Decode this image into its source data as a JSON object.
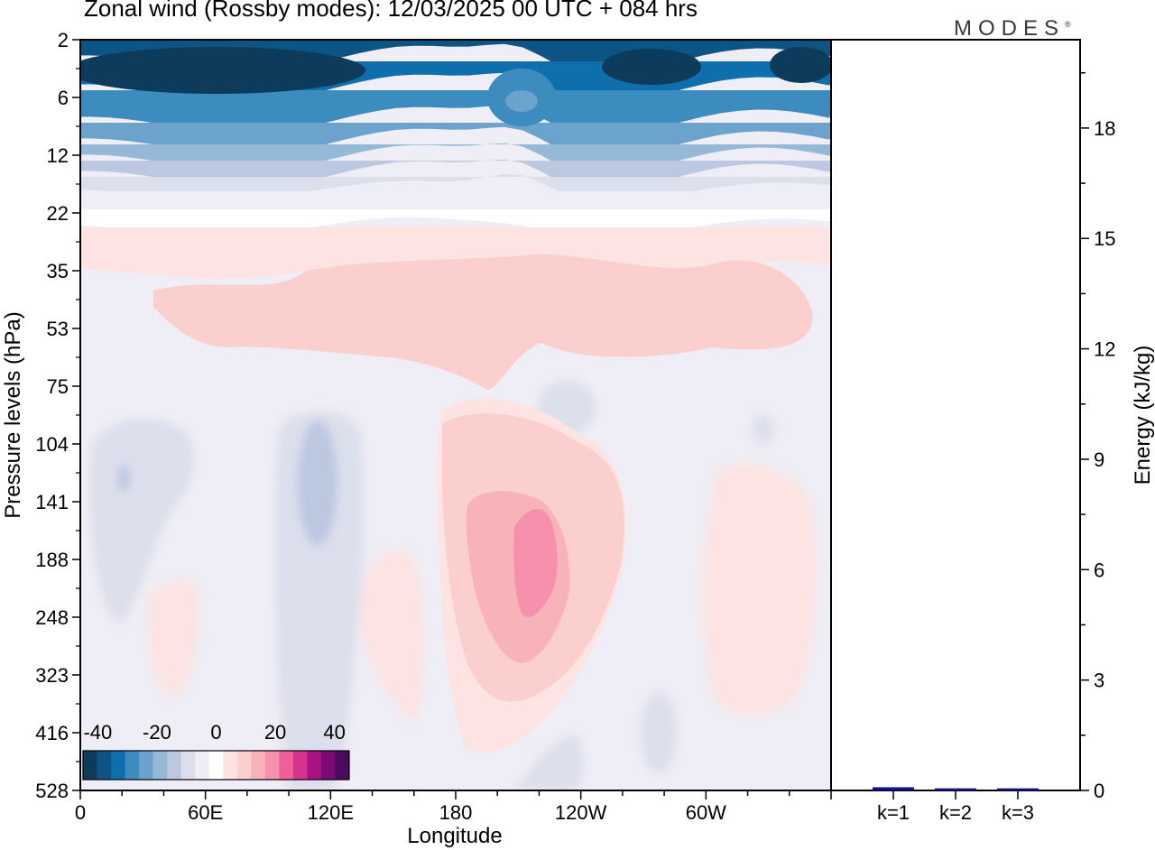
{
  "title": "Zonal wind (Rossby modes):  12/03/2025  00 UTC  + 084 hrs",
  "brand": "MODES",
  "brand_mark": "®",
  "chart_data": [
    {
      "type": "heatmap",
      "title": "Zonal wind (Rossby modes):  12/03/2025  00 UTC  + 084 hrs",
      "xlabel": "Longitude",
      "ylabel": "Pressure levels (hPa)",
      "x_ticks": [
        "0",
        "60E",
        "120E",
        "180",
        "120W",
        "60W"
      ],
      "x_tick_degrees": [
        0,
        60,
        120,
        180,
        240,
        300
      ],
      "x_range_degrees": [
        0,
        360
      ],
      "y_ticks": [
        "2",
        "6",
        "12",
        "22",
        "35",
        "53",
        "75",
        "104",
        "141",
        "188",
        "248",
        "323",
        "416",
        "528"
      ],
      "y_scale": "model-levels (inverted)",
      "colorbar": {
        "tick_labels": [
          "-40",
          "-20",
          "0",
          "20",
          "40"
        ],
        "tick_values": [
          -40,
          -20,
          0,
          20,
          40
        ],
        "range": [
          -45,
          45
        ],
        "step": 5,
        "colors": [
          "#0d3b5c",
          "#0d5485",
          "#0f6fad",
          "#3c8cc0",
          "#6ba3cc",
          "#97b9d8",
          "#bcc8e0",
          "#dcdfec",
          "#efedf5",
          "#ffffff",
          "#fde3e2",
          "#fbcfcd",
          "#f8b3b8",
          "#f590ad",
          "#ef5f9a",
          "#d6338f",
          "#a8147f",
          "#7a0a74",
          "#4a0a5e"
        ]
      },
      "field": [
        {
          "lon": 20,
          "level": "4",
          "value": -42
        },
        {
          "lon": 250,
          "level": "4",
          "value": -40
        },
        {
          "lon": 330,
          "level": "4",
          "value": -38
        },
        {
          "lon": 210,
          "level": "6",
          "value": -28
        },
        {
          "lon": 180,
          "level": "10",
          "value": -30
        },
        {
          "lon": 180,
          "level": "16",
          "value": -12
        },
        {
          "lon": 180,
          "level": "22",
          "value": -3
        },
        {
          "lon": 180,
          "level": "45",
          "value": 4
        },
        {
          "lon": 20,
          "level": "120",
          "value": -5
        },
        {
          "lon": 115,
          "level": "130",
          "value": -7
        },
        {
          "lon": 210,
          "level": "170",
          "value": 14
        }
      ]
    },
    {
      "type": "bar",
      "categories": [
        "k=1",
        "k=2",
        "k=3"
      ],
      "values": [
        0.05,
        0.02,
        0.02
      ],
      "ylabel": "Energy (kJ/kg)",
      "ylim": [
        0,
        20.4
      ],
      "y_ticks": [
        0,
        3,
        6,
        9,
        12,
        15,
        18
      ],
      "bar_color": "#10108a"
    }
  ]
}
